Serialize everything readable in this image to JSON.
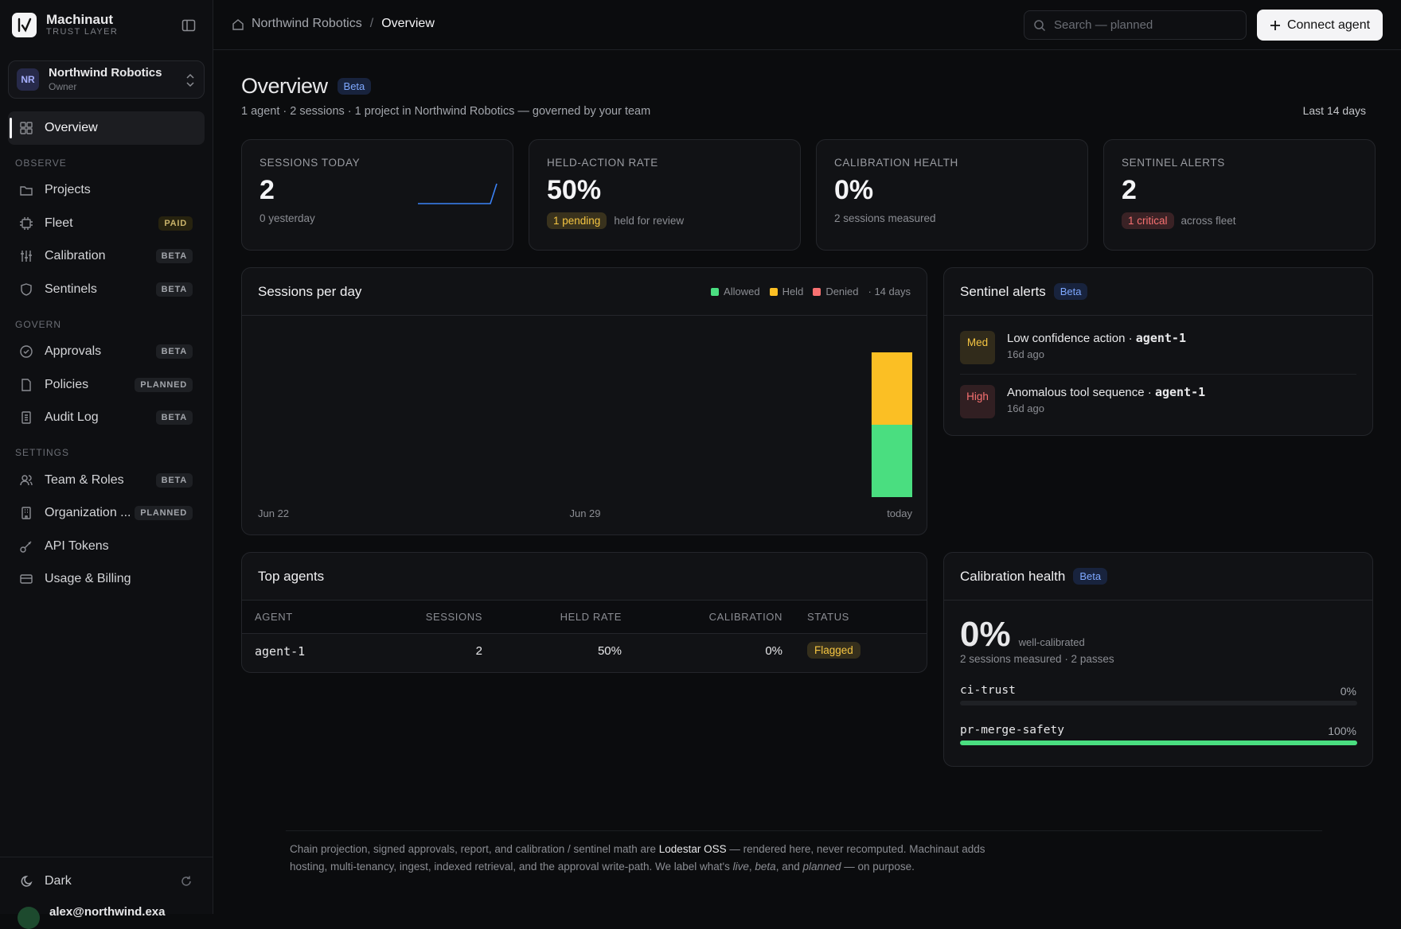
{
  "sidebar": {
    "brand": {
      "name": "Machinaut",
      "tagline": "TRUST LAYER"
    },
    "org": {
      "initials": "NR",
      "name": "Northwind Robotics",
      "role": "Owner"
    },
    "home_item": "Overview",
    "sections": [
      {
        "title": "OBSERVE",
        "items": [
          {
            "label": "Projects"
          },
          {
            "label": "Fleet",
            "badge": "PAID"
          },
          {
            "label": "Calibration",
            "badge": "BETA"
          },
          {
            "label": "Sentinels",
            "badge": "BETA"
          }
        ]
      },
      {
        "title": "GOVERN",
        "items": [
          {
            "label": "Approvals",
            "badge": "BETA"
          },
          {
            "label": "Policies",
            "badge": "PLANNED"
          },
          {
            "label": "Audit Log",
            "badge": "BETA"
          }
        ]
      },
      {
        "title": "SETTINGS",
        "items": [
          {
            "label": "Team & Roles",
            "badge": "BETA"
          },
          {
            "label": "Organization ...",
            "badge": "PLANNED"
          },
          {
            "label": "API Tokens"
          },
          {
            "label": "Usage & Billing"
          }
        ]
      }
    ],
    "theme": "Dark",
    "user": "alex@northwind.exa"
  },
  "topbar": {
    "breadcrumb": [
      "Northwind Robotics",
      "Overview"
    ],
    "separator": "/",
    "search": "Search — planned",
    "button": "Connect agent"
  },
  "header": {
    "title": "Overview",
    "badge": "Beta",
    "subtitle": "1 agent · 2 sessions · 1 project in Northwind Robotics — governed by your team",
    "range": "Last 14 days"
  },
  "stats": [
    {
      "label": "SESSIONS TODAY",
      "value": "2",
      "note": "0 yesterday"
    },
    {
      "label": "HELD-ACTION RATE",
      "value": "50%",
      "pill": "1 pending",
      "pill_color": "#f5c542",
      "note": "held for review"
    },
    {
      "label": "CALIBRATION HEALTH",
      "value": "0%",
      "note": "2 sessions measured"
    },
    {
      "label": "SENTINEL ALERTS",
      "value": "2",
      "pill": "1 critical",
      "pill_color": "#f87171",
      "note": "across fleet"
    }
  ],
  "chart_data": {
    "type": "bar",
    "stacked": true,
    "title": "Sessions per day",
    "range_note": "· 14 days",
    "categories": [
      "Jun 22",
      null,
      null,
      null,
      null,
      null,
      null,
      "Jun 29",
      null,
      null,
      null,
      null,
      null,
      "today"
    ],
    "series": [
      {
        "name": "Allowed",
        "color": "#4ade80",
        "values": [
          0,
          0,
          0,
          0,
          0,
          0,
          0,
          0,
          0,
          0,
          0,
          0,
          0,
          1
        ]
      },
      {
        "name": "Held",
        "color": "#fbbf24",
        "values": [
          0,
          0,
          0,
          0,
          0,
          0,
          0,
          0,
          0,
          0,
          0,
          0,
          0,
          1
        ]
      },
      {
        "name": "Denied",
        "color": "#f87171",
        "values": [
          0,
          0,
          0,
          0,
          0,
          0,
          0,
          0,
          0,
          0,
          0,
          0,
          0,
          0
        ]
      }
    ],
    "ylim": [
      0,
      2
    ]
  },
  "sentinels": {
    "title": "Sentinel alerts",
    "badge": "Beta",
    "items": [
      {
        "severity": "Med",
        "color": "#f5c542",
        "text": "Low confidence action · ",
        "agent": "agent-1",
        "time": "16d ago"
      },
      {
        "severity": "High",
        "color": "#f87171",
        "text": "Anomalous tool sequence · ",
        "agent": "agent-1",
        "time": "16d ago"
      }
    ]
  },
  "agents": {
    "title": "Top agents",
    "columns": [
      "AGENT",
      "SESSIONS",
      "HELD RATE",
      "CALIBRATION",
      "STATUS"
    ],
    "rows": [
      [
        "agent-1",
        "2",
        "50%",
        "0%",
        "Flagged"
      ]
    ],
    "status_color": "#f5c542"
  },
  "calibration": {
    "title": "Calibration health",
    "badge": "Beta",
    "value": "0%",
    "value_note": "well-calibrated",
    "summary": "2 sessions measured · 2 passes",
    "xlim": [
      0,
      100
    ],
    "checks": [
      {
        "name": "ci-trust",
        "value": 0,
        "label": "0%"
      },
      {
        "name": "pr-merge-safety",
        "value": 100,
        "label": "100%"
      }
    ]
  },
  "footer": {
    "parts": [
      "Chain projection, signed approvals, report, and calibration / sentinel math are ",
      "Lodestar OSS",
      " — rendered here, never recomputed. Machinaut adds hosting, multi-tenancy, ingest, indexed retrieval, and the approval write-path. We label what's ",
      "live",
      ", ",
      "beta",
      ", and ",
      "planned",
      " — on purpose."
    ]
  }
}
